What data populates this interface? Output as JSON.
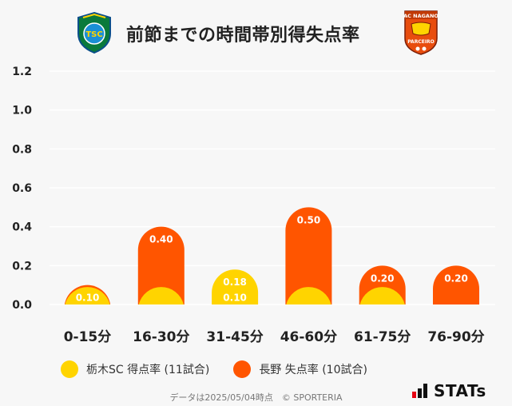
{
  "header": {
    "title": "前節までの時間帯別得失点率",
    "left_logo_text": "TSC",
    "right_logo_text_top": "AC NAGANO",
    "right_logo_text_bottom": "PARCEIRO"
  },
  "colors": {
    "tochigi": "#ffd400",
    "nagano": "#ff5500",
    "grid": "#ffffff",
    "axis_text": "#222222"
  },
  "chart_data": {
    "type": "bar",
    "categories": [
      "0-15分",
      "16-30分",
      "31-45分",
      "46-60分",
      "61-75分",
      "76-90分"
    ],
    "series": [
      {
        "name": "栃木SC 得点率 (11試合)",
        "values": [
          0.09,
          0.09,
          0.18,
          0.09,
          0.09,
          0
        ],
        "labels": [
          "",
          "",
          "0.18",
          "",
          "",
          ""
        ]
      },
      {
        "name": "長野 失点率 (10試合)",
        "values": [
          0.1,
          0.4,
          0.1,
          0.5,
          0.2,
          0.2
        ],
        "labels": [
          "0.10",
          "0.40",
          "0.10",
          "0.50",
          "0.20",
          "0.20"
        ]
      }
    ],
    "yticks": [
      "0.0",
      "0.2",
      "0.4",
      "0.6",
      "0.8",
      "1.0",
      "1.2"
    ],
    "ylim": [
      0,
      1.2
    ],
    "grid": true,
    "legend": "bottom-left"
  },
  "legend": {
    "item1": "栃木SC 得点率 (11試合)",
    "item2": "長野 失点率 (10試合)"
  },
  "footer": {
    "text": "データは2025/05/04時点　© SPORTERIA"
  },
  "brand": {
    "word": "STATs"
  }
}
